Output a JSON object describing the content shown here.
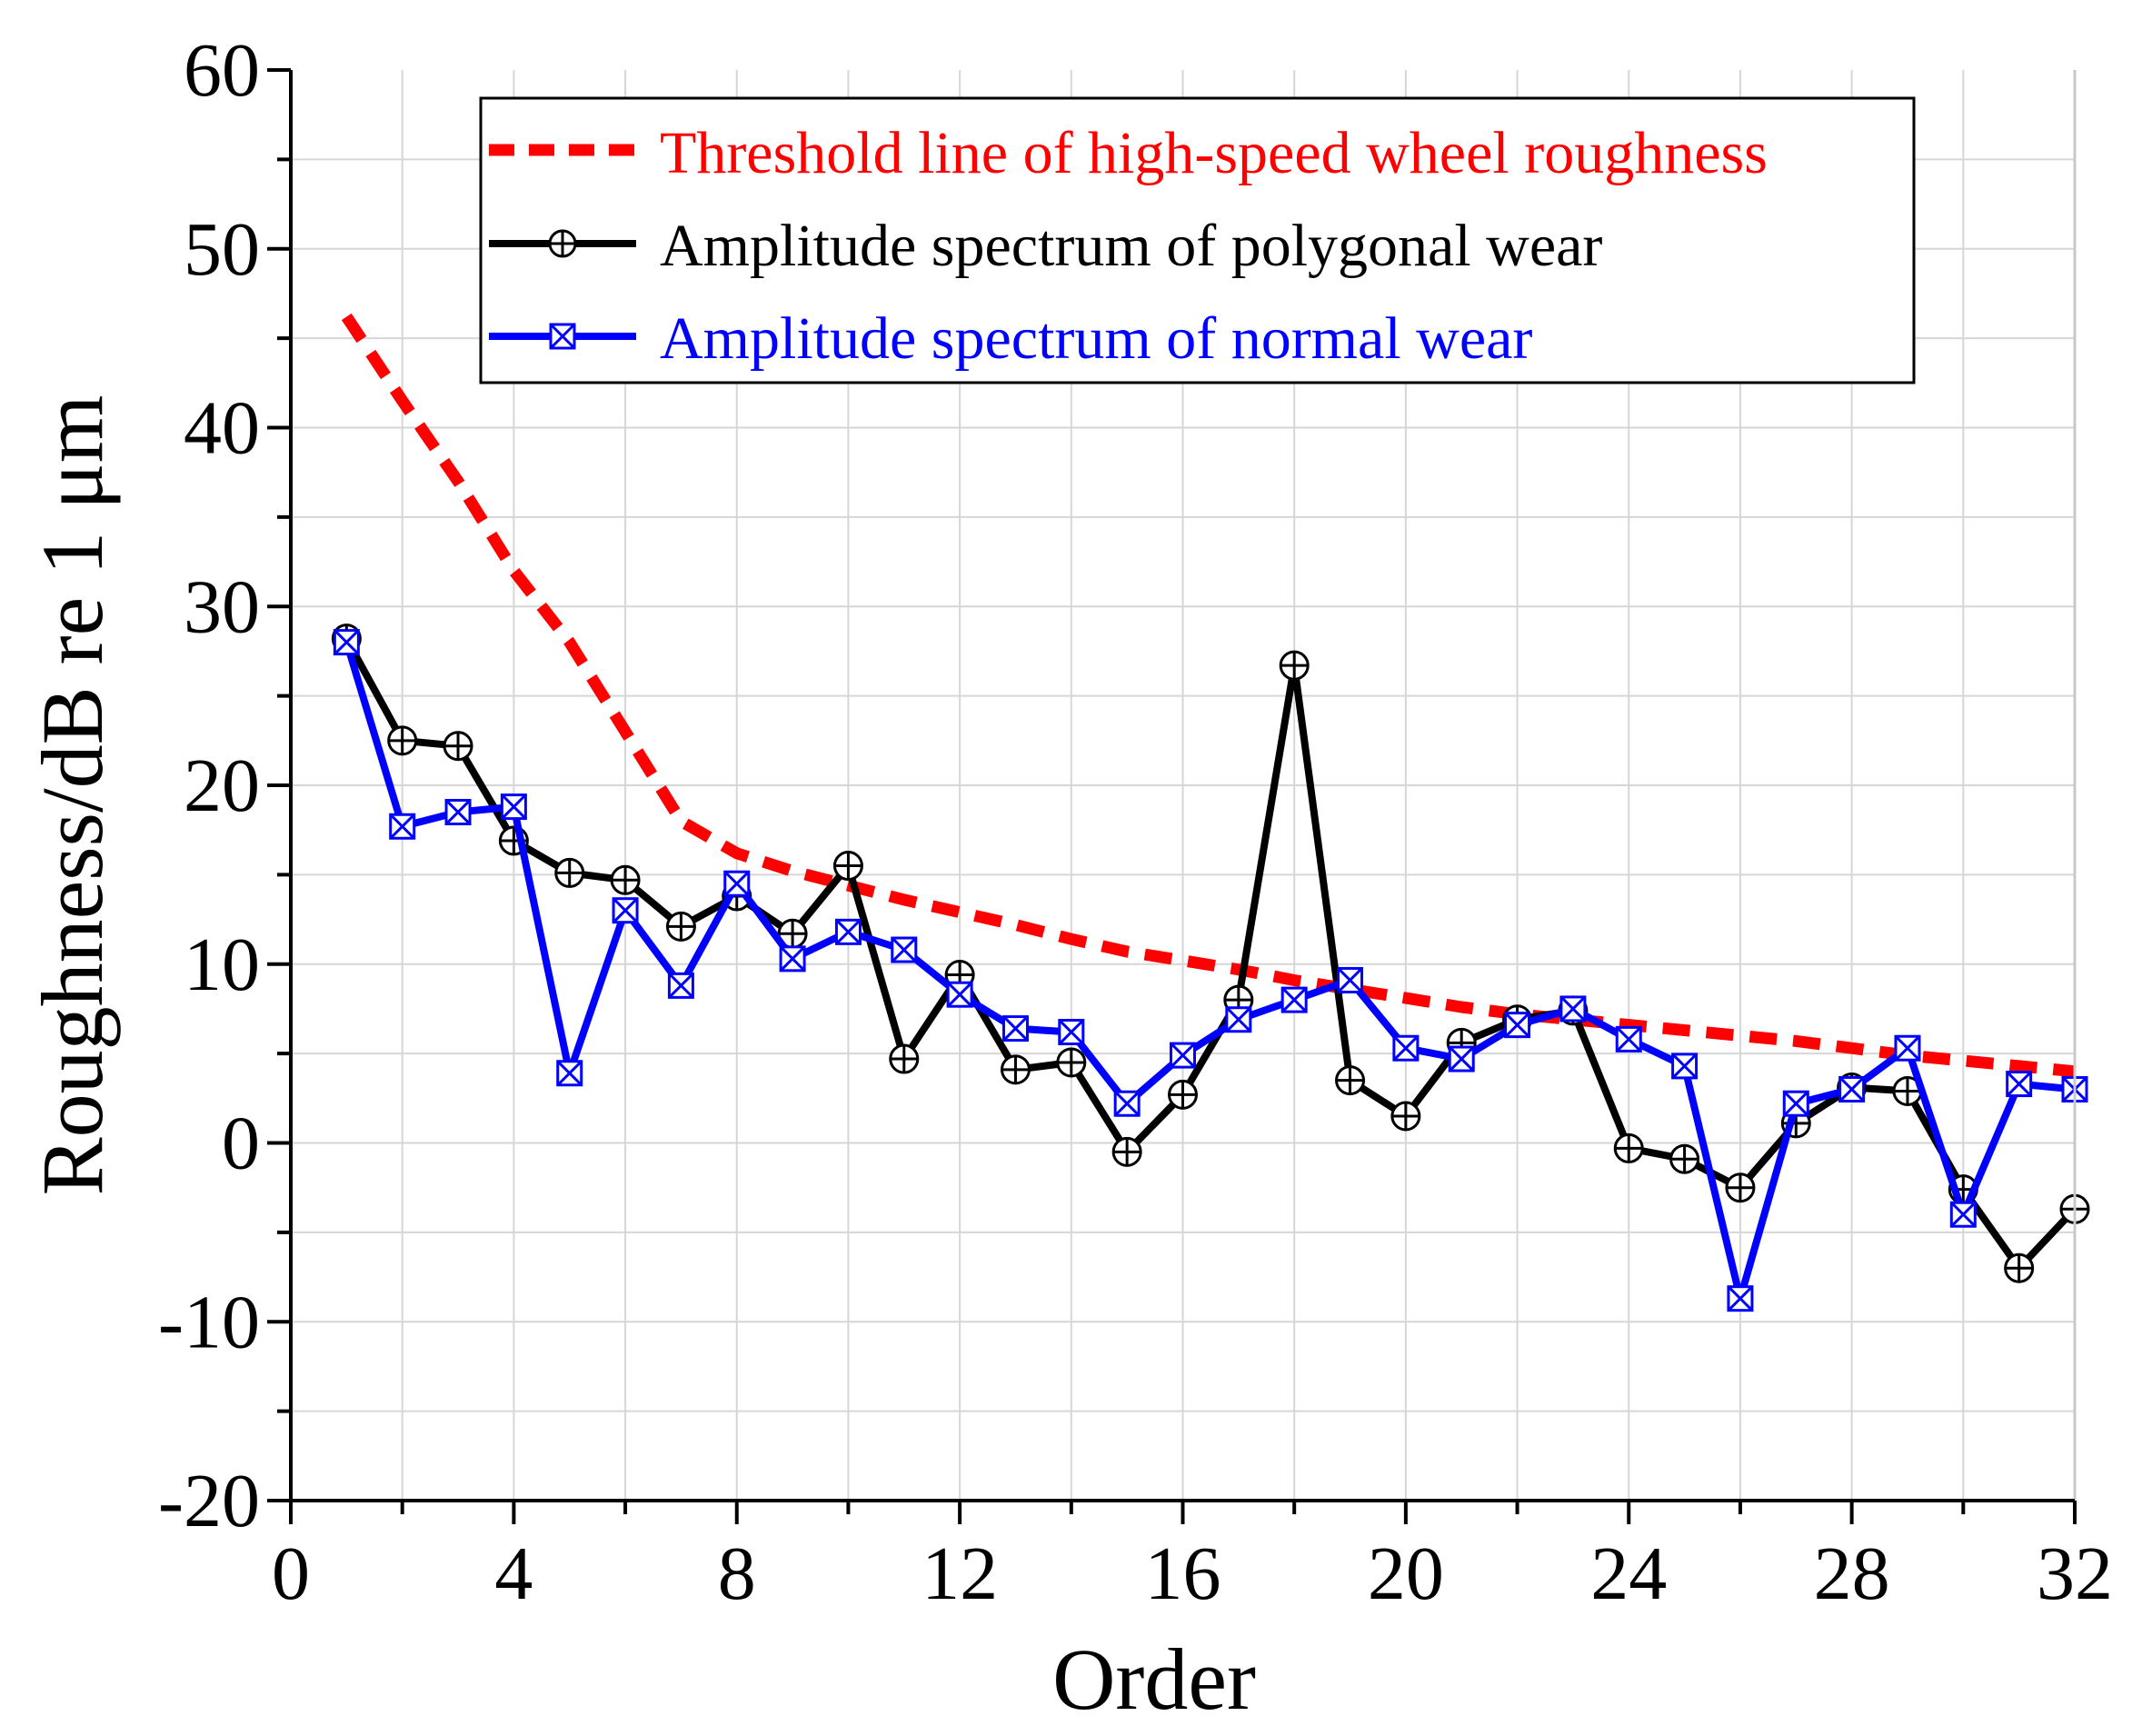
{
  "chart_data": {
    "type": "line",
    "title": "",
    "xlabel": "Order",
    "ylabel": "Roughness/dB re 1 μm",
    "xlim": [
      0,
      32
    ],
    "ylim": [
      -20,
      60
    ],
    "x_ticks": [
      "0",
      "4",
      "8",
      "12",
      "16",
      "20",
      "24",
      "28",
      "32"
    ],
    "y_ticks": [
      "-20",
      "-10",
      "0",
      "10",
      "20",
      "30",
      "40",
      "50",
      "60"
    ],
    "grid": true,
    "legend_position": "top-right",
    "series": [
      {
        "name": "Threshold line of high-speed wheel roughness",
        "color": "#ff0000",
        "style": "dashed",
        "marker": "none",
        "x": [
          1,
          2,
          3,
          4,
          5,
          6,
          7,
          8,
          9,
          10,
          11,
          12,
          13,
          14,
          15,
          16,
          17,
          18,
          19,
          20,
          21,
          22,
          23,
          24,
          25,
          26,
          27,
          28,
          29,
          30,
          31,
          32
        ],
        "values": [
          46.2,
          41.5,
          37.0,
          32.0,
          28.0,
          23.0,
          18.0,
          16.2,
          15.2,
          14.4,
          13.6,
          12.9,
          12.2,
          11.4,
          10.7,
          10.2,
          9.7,
          9.1,
          8.6,
          8.1,
          7.6,
          7.2,
          6.9,
          6.6,
          6.3,
          6.0,
          5.7,
          5.3,
          4.9,
          4.6,
          4.3,
          4.0
        ]
      },
      {
        "name": "Amplitude spectrum of polygonal wear",
        "color": "#000000",
        "style": "solid",
        "marker": "circle-plus",
        "x": [
          1,
          2,
          3,
          4,
          5,
          6,
          7,
          8,
          9,
          10,
          11,
          12,
          13,
          14,
          15,
          16,
          17,
          18,
          19,
          20,
          21,
          22,
          23,
          24,
          25,
          26,
          27,
          28,
          29,
          30,
          31,
          32
        ],
        "values": [
          28.2,
          22.5,
          22.2,
          16.9,
          15.1,
          14.7,
          12.1,
          13.8,
          11.7,
          15.5,
          4.7,
          9.4,
          4.1,
          4.5,
          -0.5,
          2.7,
          8.0,
          26.7,
          3.5,
          1.5,
          5.6,
          6.9,
          7.4,
          -0.3,
          -0.9,
          -2.5,
          1.1,
          3.1,
          2.9,
          -2.6,
          -7.0,
          -3.7
        ]
      },
      {
        "name": "Amplitude spectrum of normal wear",
        "color": "#0000ff",
        "style": "solid",
        "marker": "square-x",
        "x": [
          1,
          2,
          3,
          4,
          5,
          6,
          7,
          8,
          9,
          10,
          11,
          12,
          13,
          14,
          15,
          16,
          17,
          18,
          19,
          20,
          21,
          22,
          23,
          24,
          25,
          26,
          27,
          28,
          29,
          30,
          31,
          32
        ],
        "values": [
          28.0,
          17.7,
          18.5,
          18.8,
          3.9,
          13.0,
          8.8,
          14.5,
          10.3,
          11.8,
          10.8,
          8.3,
          6.4,
          6.2,
          2.2,
          4.9,
          6.9,
          8.0,
          9.1,
          5.3,
          4.7,
          6.6,
          7.5,
          5.8,
          4.3,
          -8.7,
          2.2,
          3.0,
          5.3,
          -4.0,
          3.3,
          3.0
        ]
      }
    ]
  }
}
